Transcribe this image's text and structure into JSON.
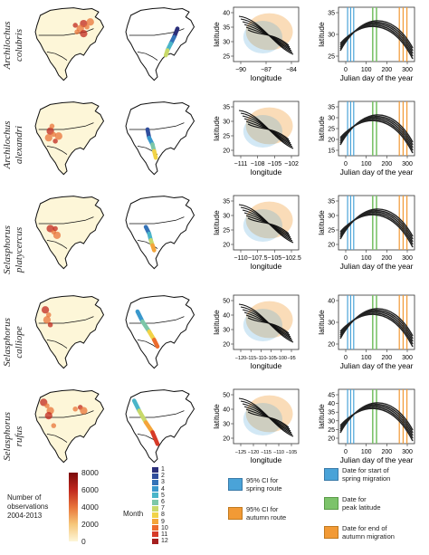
{
  "species": [
    {
      "genus": "Archilochus",
      "epithet": "colubris"
    },
    {
      "genus": "Archilochus",
      "epithet": "alexandri"
    },
    {
      "genus": "Selasphorus",
      "epithet": "platycercus"
    },
    {
      "genus": "Selasphorus",
      "epithet": "calliope"
    },
    {
      "genus": "Selasphorus",
      "epithet": "rufus"
    }
  ],
  "route_panels": [
    {
      "ylabel": "latitude",
      "xlabel": "longitude",
      "yticks": [
        "40",
        "35",
        "30",
        "25"
      ],
      "xticks": [
        "−90",
        "−87",
        "−84"
      ]
    },
    {
      "ylabel": "latitude",
      "xlabel": "longitude",
      "yticks": [
        "35",
        "30",
        "25",
        "20"
      ],
      "xticks": [
        "−111",
        "−108",
        "−105",
        "−102"
      ]
    },
    {
      "ylabel": "latitude",
      "xlabel": "longitude",
      "yticks": [
        "35",
        "30",
        "25",
        "20"
      ],
      "xticks": [
        "−110",
        "−107.5",
        "−105",
        "−102.5"
      ]
    },
    {
      "ylabel": "latitude",
      "xlabel": "longitude",
      "yticks": [
        "50",
        "40",
        "30",
        "20"
      ],
      "xticks": [
        "−120",
        "−115",
        "−110",
        "−105",
        "−100",
        "−95"
      ]
    },
    {
      "ylabel": "latitude",
      "xlabel": "longitude",
      "yticks": [
        "50",
        "40",
        "30",
        "20"
      ],
      "xticks": [
        "−125",
        "−120",
        "−115",
        "−110",
        "−105"
      ]
    }
  ],
  "phenology_panels": [
    {
      "ylabel": "latitude",
      "xlabel": "Julian day of the year",
      "yticks": [
        "35",
        "30",
        "25"
      ],
      "xticks": [
        "0",
        "100",
        "200",
        "300"
      ]
    },
    {
      "ylabel": "latitude",
      "xlabel": "Julian day of the year",
      "yticks": [
        "35",
        "30",
        "25",
        "20",
        "15"
      ],
      "xticks": [
        "0",
        "100",
        "200",
        "300"
      ]
    },
    {
      "ylabel": "latitude",
      "xlabel": "Julian day of the year",
      "yticks": [
        "35",
        "30",
        "25",
        "20"
      ],
      "xticks": [
        "0",
        "100",
        "200",
        "300"
      ]
    },
    {
      "ylabel": "latitude",
      "xlabel": "Julian day of the year",
      "yticks": [
        "40",
        "30",
        "20"
      ],
      "xticks": [
        "0",
        "100",
        "200",
        "300"
      ]
    },
    {
      "ylabel": "latitude",
      "xlabel": "Julian day of the year",
      "yticks": [
        "45",
        "40",
        "35",
        "30",
        "25",
        "20"
      ],
      "xticks": [
        "0",
        "100",
        "200",
        "300"
      ]
    }
  ],
  "obs_legend": {
    "title_lines": [
      "Number of",
      "observations",
      "2004-2013"
    ],
    "ticks": [
      "8000",
      "6000",
      "4000",
      "2000",
      "0"
    ],
    "colors": [
      "#7a0a0a",
      "#c0281e",
      "#e8743a",
      "#f6c77a",
      "#fdf6d8"
    ]
  },
  "month_legend": {
    "title": "Month",
    "items": [
      "1",
      "2",
      "3",
      "4",
      "5",
      "6",
      "7",
      "8",
      "9",
      "10",
      "11",
      "12"
    ],
    "colors": [
      "#2b2f7a",
      "#2f4d9c",
      "#3473b8",
      "#3a98cc",
      "#4ab5c9",
      "#7cc7a8",
      "#c8d96a",
      "#f1d347",
      "#f4a53a",
      "#ec6b2d",
      "#d73a28",
      "#a51f1f"
    ]
  },
  "ci_legend": [
    {
      "text_lines": [
        "95% CI for",
        "spring route"
      ],
      "color": "#4aa3d8"
    },
    {
      "text_lines": [
        "95% CI for",
        "autumn route"
      ],
      "color": "#f29a35"
    }
  ],
  "date_legend": [
    {
      "text_lines": [
        "Date for start of",
        "spring migration"
      ],
      "color": "#4aa3d8"
    },
    {
      "text_lines": [
        "Date for",
        "peak latitude"
      ],
      "color": "#7cc36a"
    },
    {
      "text_lines": [
        "Date for end of",
        "autumn migration"
      ],
      "color": "#f29a35"
    }
  ]
}
